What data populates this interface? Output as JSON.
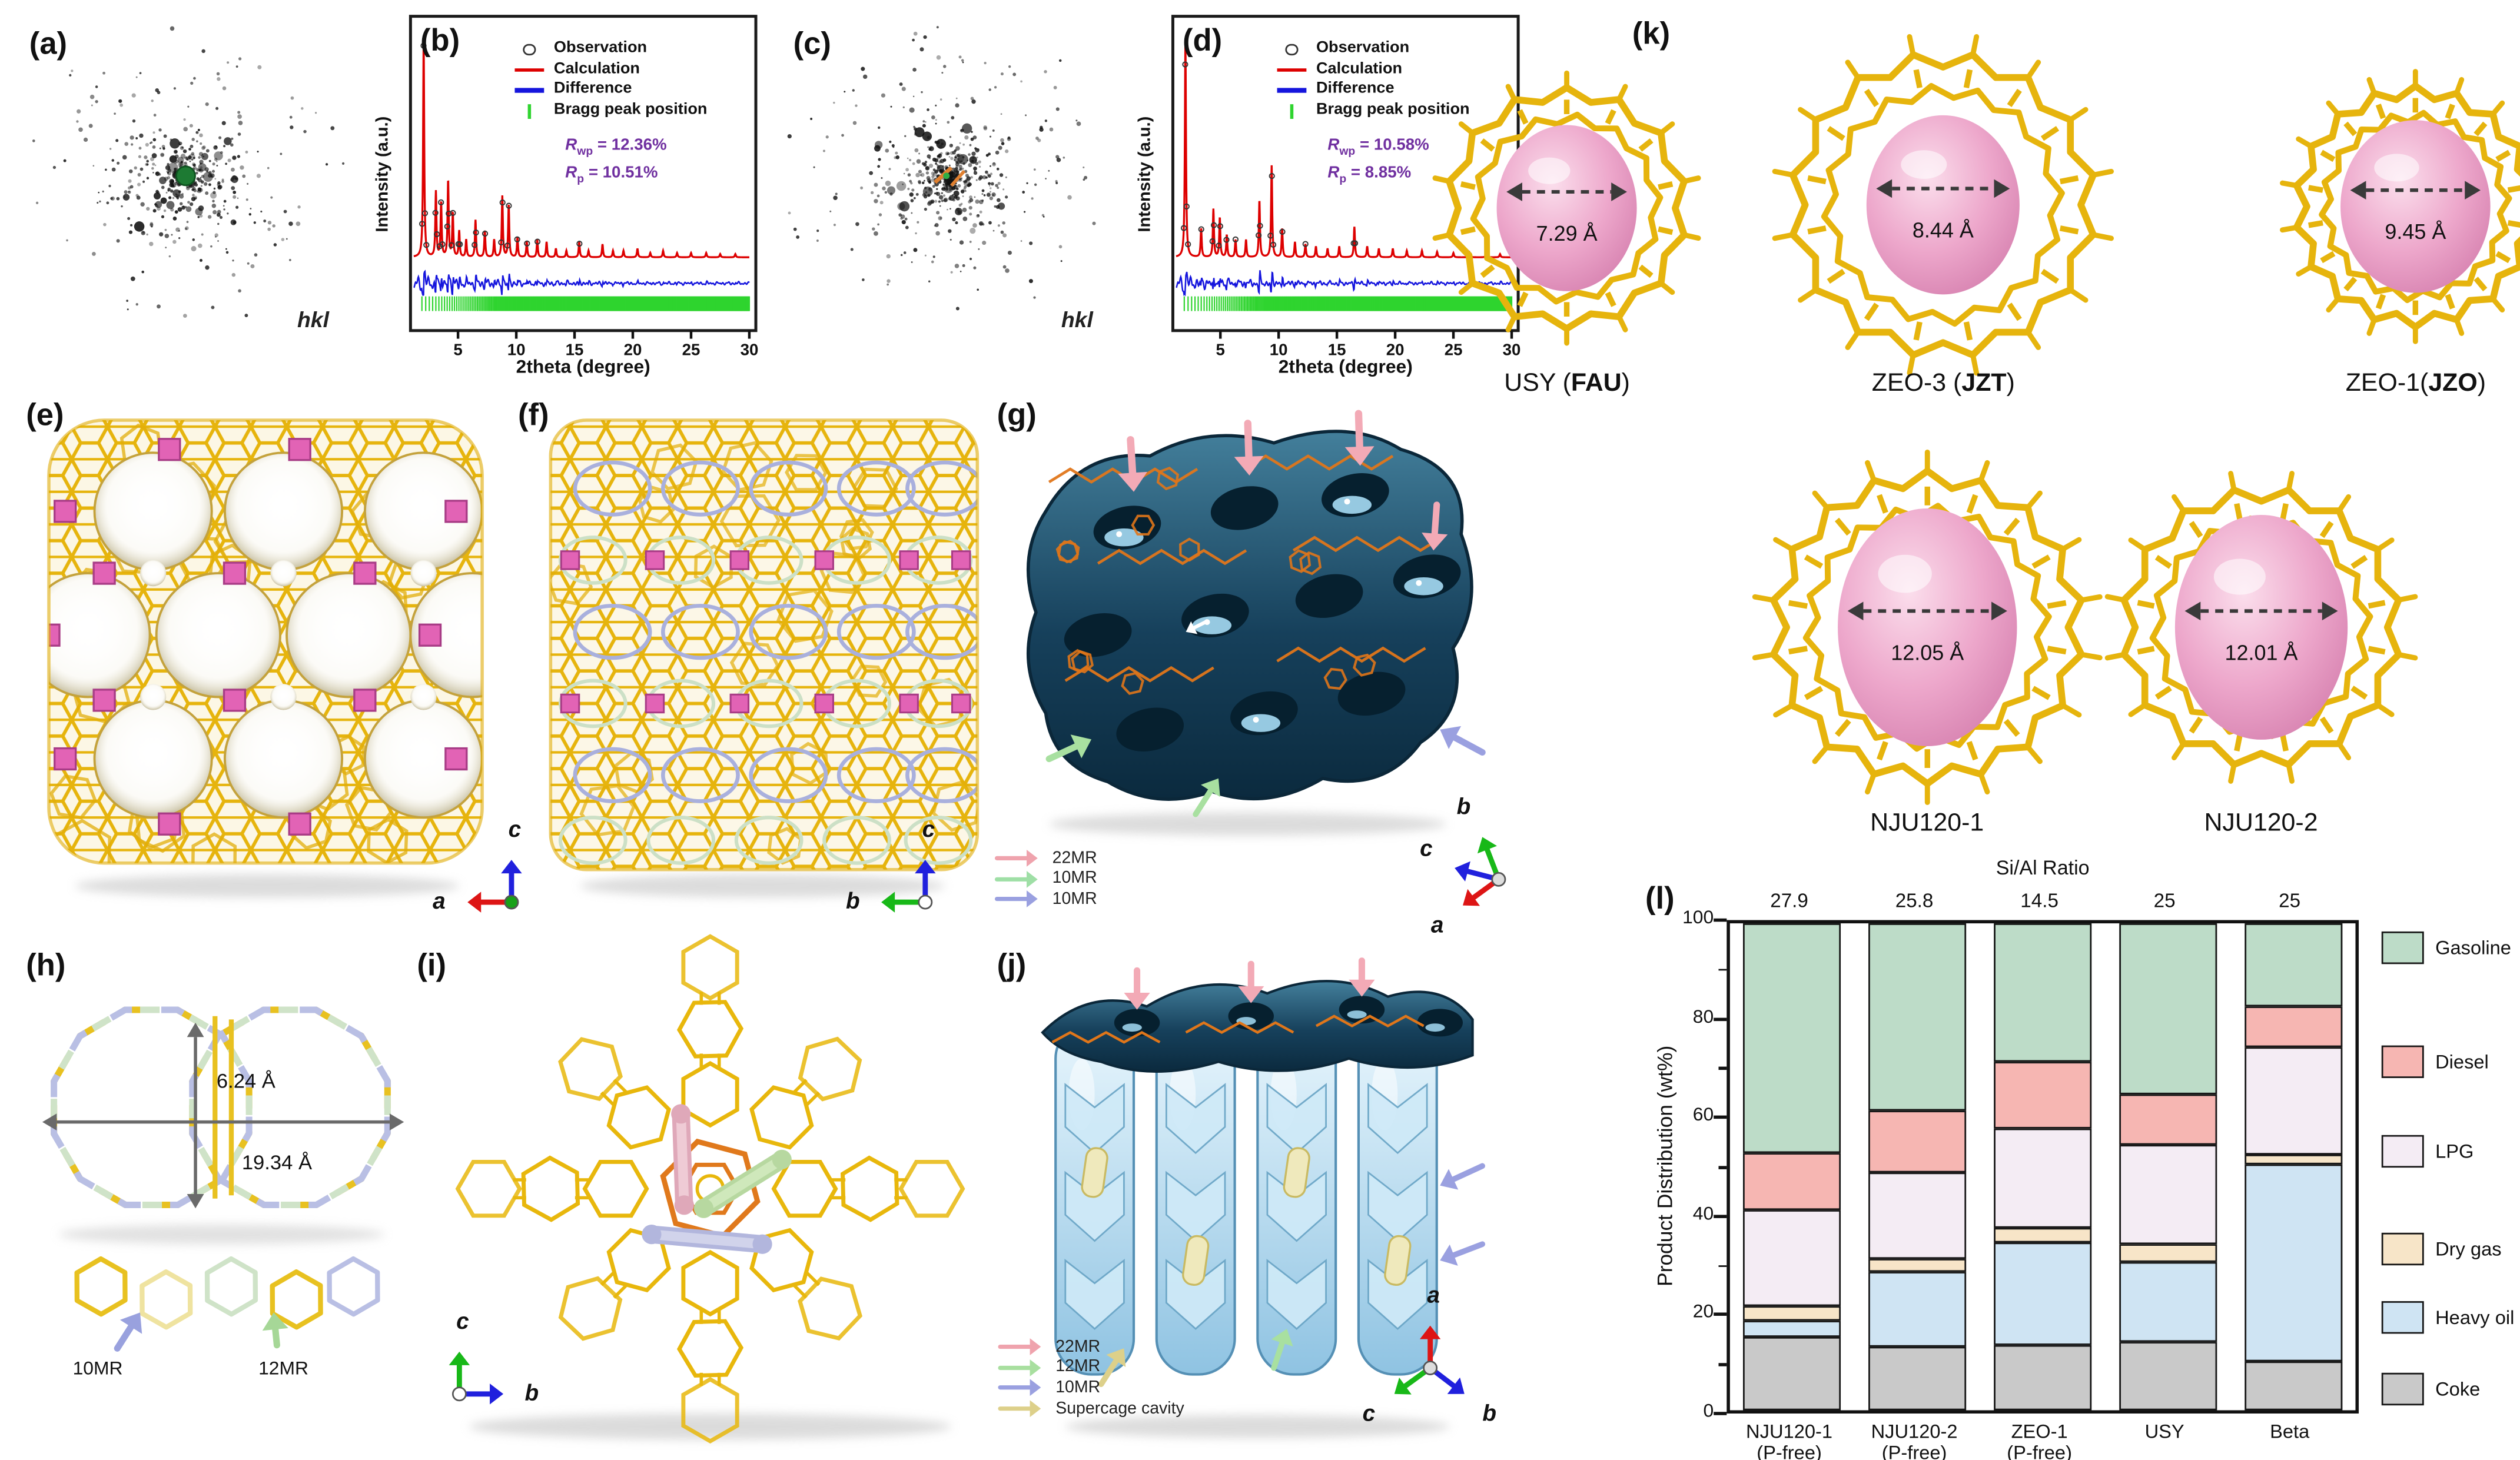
{
  "panels": {
    "a": {
      "label": "(a)",
      "hkl": "hkl"
    },
    "b": {
      "label": "(b)"
    },
    "c": {
      "label": "(c)",
      "hkl": "hkl"
    },
    "d": {
      "label": "(d)"
    },
    "e": {
      "label": "(e)"
    },
    "f": {
      "label": "(f)"
    },
    "g": {
      "label": "(g)"
    },
    "h": {
      "label": "(h)"
    },
    "i": {
      "label": "(i)"
    },
    "j": {
      "label": "(j)"
    },
    "k": {
      "label": "(k)"
    },
    "l": {
      "label": "(l)"
    }
  },
  "chart_data": [
    {
      "type": "line",
      "panel": "b",
      "subtype": "rietveld-xrd",
      "xlabel": "2theta (degree)",
      "ylabel": "Intensity (a.u.)",
      "xlim": [
        1.2,
        30
      ],
      "xticks": [
        5,
        10,
        15,
        20,
        25,
        30
      ],
      "legend": [
        {
          "label": "Observation",
          "symbol": "circle",
          "color": "#333333"
        },
        {
          "label": "Calculation",
          "symbol": "line",
          "color": "#dd0000"
        },
        {
          "label": "Difference",
          "symbol": "line",
          "color": "#1515dd"
        },
        {
          "label": "Bragg peak position",
          "symbol": "tick",
          "color": "#2fd42f"
        }
      ],
      "r": {
        "rwp_sym": "R",
        "rwp_sub": "wp",
        "rwp_eq": "= 12.36%",
        "rp_sym": "R",
        "rp_sub": "p",
        "rp_eq": "= 10.51%",
        "color": "#7030a0"
      },
      "peaks": [
        [
          2.05,
          1.0
        ],
        [
          3.1,
          0.3
        ],
        [
          3.55,
          0.25
        ],
        [
          4.15,
          0.35
        ],
        [
          4.55,
          0.2
        ],
        [
          5.1,
          0.12
        ],
        [
          5.7,
          0.08
        ],
        [
          6.5,
          0.17
        ],
        [
          7.3,
          0.12
        ],
        [
          8.1,
          0.08
        ],
        [
          8.8,
          0.28
        ],
        [
          9.35,
          0.24
        ],
        [
          10.1,
          0.09
        ],
        [
          10.9,
          0.07
        ],
        [
          11.8,
          0.08
        ],
        [
          12.6,
          0.07
        ],
        [
          13.4,
          0.04
        ],
        [
          14.3,
          0.03
        ],
        [
          15.4,
          0.07
        ],
        [
          16.2,
          0.03
        ],
        [
          17.4,
          0.06
        ],
        [
          18.3,
          0.03
        ],
        [
          19.2,
          0.03
        ],
        [
          20.4,
          0.04
        ],
        [
          21.5,
          0.02
        ],
        [
          22.6,
          0.03
        ],
        [
          23.8,
          0.02
        ],
        [
          25.0,
          0.02
        ],
        [
          26.3,
          0.02
        ],
        [
          27.5,
          0.015
        ],
        [
          28.8,
          0.015
        ]
      ]
    },
    {
      "type": "line",
      "panel": "d",
      "subtype": "rietveld-xrd",
      "xlabel": "2theta (degree)",
      "ylabel": "Intensity (a.u.)",
      "xlim": [
        1.2,
        30
      ],
      "xticks": [
        5,
        10,
        15,
        20,
        25,
        30
      ],
      "legend": [
        {
          "label": "Observation",
          "symbol": "circle",
          "color": "#333333"
        },
        {
          "label": "Calculation",
          "symbol": "line",
          "color": "#dd0000"
        },
        {
          "label": "Difference",
          "symbol": "line",
          "color": "#1515dd"
        },
        {
          "label": "Bragg peak position",
          "symbol": "tick",
          "color": "#2fd42f"
        }
      ],
      "r": {
        "rwp_sym": "R",
        "rwp_sub": "wp",
        "rwp_eq": "= 10.58%",
        "rp_sym": "R",
        "rp_sub": "p",
        "rp_eq": "=  8.85%",
        "color": "#7030a0"
      },
      "peaks": [
        [
          2.0,
          1.0
        ],
        [
          3.35,
          0.13
        ],
        [
          4.4,
          0.22
        ],
        [
          4.95,
          0.18
        ],
        [
          5.55,
          0.1
        ],
        [
          6.3,
          0.08
        ],
        [
          7.2,
          0.08
        ],
        [
          8.35,
          0.26
        ],
        [
          9.4,
          0.42
        ],
        [
          10.3,
          0.13
        ],
        [
          11.4,
          0.07
        ],
        [
          12.3,
          0.06
        ],
        [
          13.2,
          0.05
        ],
        [
          14.2,
          0.04
        ],
        [
          15.2,
          0.05
        ],
        [
          16.5,
          0.14
        ],
        [
          17.6,
          0.05
        ],
        [
          18.6,
          0.04
        ],
        [
          19.8,
          0.04
        ],
        [
          21.0,
          0.03
        ],
        [
          22.3,
          0.03
        ],
        [
          23.6,
          0.025
        ],
        [
          25.0,
          0.02
        ],
        [
          26.4,
          0.02
        ],
        [
          27.8,
          0.015
        ],
        [
          29.0,
          0.015
        ]
      ]
    },
    {
      "type": "bar",
      "panel": "l",
      "stacked": true,
      "title_top": "Si/Al Ratio",
      "si_al_values": [
        "27.9",
        "25.8",
        "14.5",
        "25",
        "25"
      ],
      "categories": [
        [
          "NJU120-1",
          "(P-free)"
        ],
        [
          "NJU120-2",
          "(P-free)"
        ],
        [
          "ZEO-1",
          "(P-free)"
        ],
        [
          "USY"
        ],
        [
          "Beta"
        ]
      ],
      "ylabel": "Product Distribution (wt%)",
      "ylim": [
        0,
        100
      ],
      "yticks": [
        0,
        20,
        40,
        60,
        80,
        100
      ],
      "series": [
        {
          "name": "Coke",
          "color": "#c9c9c9",
          "values": [
            15,
            13,
            13.5,
            14,
            10
          ]
        },
        {
          "name": "Heavy oil",
          "color": "#cfe4f3",
          "values": [
            3.5,
            15.5,
            21,
            16.5,
            40.5
          ]
        },
        {
          "name": "Dry gas",
          "color": "#f7e5c8",
          "values": [
            3,
            2.5,
            3,
            3.5,
            2
          ]
        },
        {
          "name": "LPG",
          "color": "#f4ecf4",
          "values": [
            19.5,
            18,
            20.5,
            20.5,
            22
          ]
        },
        {
          "name": "Diesel",
          "color": "#f6b6b2",
          "values": [
            12,
            12.5,
            13.5,
            10.5,
            8.5
          ]
        },
        {
          "name": "Gasoline",
          "color": "#bddcc8",
          "values": [
            47,
            38.5,
            28.5,
            35,
            17
          ]
        }
      ],
      "legend_order_top_down": [
        "Gasoline",
        "Diesel",
        "LPG",
        "Dry gas",
        "Heavy oil",
        "Coke"
      ]
    }
  ],
  "pore_gallery": {
    "row1": [
      {
        "prefix": "USY (",
        "code": "FAU",
        "suffix": ")",
        "diameter": "7.29 Å"
      },
      {
        "prefix": "ZEO-3 (",
        "code": "JZT",
        "suffix": ")",
        "diameter": "8.44 Å"
      },
      {
        "prefix": "ZEO-1(",
        "code": "JZO",
        "suffix": ")",
        "diameter": "9.45 Å"
      }
    ],
    "row2": [
      {
        "prefix": "NJU120-1",
        "code": "",
        "suffix": "",
        "diameter": "12.05 Å"
      },
      {
        "prefix": "NJU120-2",
        "code": "",
        "suffix": "",
        "diameter": "12.01 Å"
      }
    ]
  },
  "annotations": {
    "panel_h": {
      "dim_v": "6.24 Å",
      "dim_h": "19.34 Å",
      "arrows": [
        {
          "text": "10MR",
          "color": "#99a1de"
        },
        {
          "text": "12MR",
          "color": "#a6d797"
        }
      ]
    },
    "panel_g_legend": [
      {
        "text": "22MR",
        "color": "#efa3ad"
      },
      {
        "text": "10MR",
        "color": "#9fdfa6"
      },
      {
        "text": "10MR",
        "color": "#9aa0e0"
      }
    ],
    "panel_j_legend": [
      {
        "text": "22MR",
        "color": "#efa3ad"
      },
      {
        "text": "12MR",
        "color": "#a8df9f"
      },
      {
        "text": "10MR",
        "color": "#9aa0e0"
      },
      {
        "text": "Supercage cavity",
        "color": "#ddd08a"
      }
    ],
    "axis_gizmos": {
      "e": {
        "origin": "#18a018",
        "axes": [
          {
            "name": "c",
            "dir": "up",
            "color": "#2020dd"
          },
          {
            "name": "a",
            "dir": "left",
            "color": "#dd1515"
          }
        ]
      },
      "f": {
        "origin": "#ffffff",
        "axes": [
          {
            "name": "c",
            "dir": "up",
            "color": "#2020dd"
          },
          {
            "name": "b",
            "dir": "left",
            "color": "#18b818"
          }
        ]
      },
      "g": {
        "origin": "#dddddd",
        "axes": [
          {
            "name": "b",
            "dir": "up-left",
            "color": "#18b818"
          },
          {
            "name": "c",
            "dir": "left-up",
            "color": "#2020dd"
          },
          {
            "name": "a",
            "dir": "down-left",
            "color": "#dd1515"
          }
        ]
      },
      "i": {
        "origin": "#ffffff",
        "axes": [
          {
            "name": "c",
            "dir": "up",
            "color": "#18b818"
          },
          {
            "name": "b",
            "dir": "right",
            "color": "#2020dd"
          }
        ]
      },
      "j": {
        "origin": "#dddddd",
        "axes": [
          {
            "name": "a",
            "dir": "up",
            "color": "#dd1515"
          },
          {
            "name": "c",
            "dir": "down-left",
            "color": "#18b818"
          },
          {
            "name": "b",
            "dir": "down-right",
            "color": "#2020dd"
          }
        ]
      }
    }
  },
  "colors": {
    "framework_yellow": "#e8b70c",
    "pink_sphere": "#e89cc6",
    "pink_square": "#e263b5",
    "teal_surface": "#1d4a63",
    "orange_wire": "#e0761a",
    "purple_r": "#7030a0",
    "bragg_green": "#2fd42f"
  }
}
